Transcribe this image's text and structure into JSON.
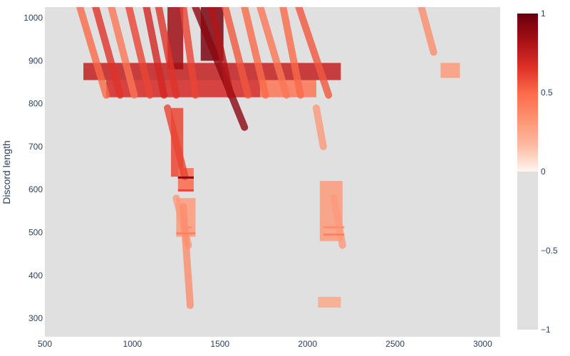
{
  "chart_data": {
    "type": "heatmap",
    "title": "",
    "xlabel": "",
    "ylabel": "Discord length",
    "xlim": [
      500,
      3100
    ],
    "ylim": [
      257,
      1025
    ],
    "x_ticks": [
      500,
      1000,
      1500,
      2000,
      2500,
      3000
    ],
    "y_ticks": [
      300,
      400,
      500,
      600,
      700,
      800,
      900,
      1000
    ],
    "colorscale": {
      "name": "Reds",
      "range": [
        -1,
        1
      ],
      "ticks": [
        -1,
        -0.5,
        0,
        0.5,
        1
      ],
      "tick_labels": [
        "−1",
        "−0.5",
        "0",
        "0.5",
        "1"
      ],
      "negative_color": "#e0e0e0",
      "stops": [
        "#fff5f0",
        "#fcbba1",
        "#fc9272",
        "#fb6a4a",
        "#de2d26",
        "#a50f15",
        "#67000d"
      ]
    },
    "background_color": "#e0e0e0",
    "regions": [
      {
        "x0": 720,
        "x1": 2190,
        "y0": 855,
        "y1": 895,
        "value": 0.75
      },
      {
        "x0": 850,
        "x1": 1730,
        "y0": 815,
        "y1": 855,
        "value": 0.7
      },
      {
        "x0": 1730,
        "x1": 2050,
        "y0": 815,
        "y1": 855,
        "value": 0.45
      },
      {
        "x0": 1200,
        "x1": 1290,
        "y0": 880,
        "y1": 1025,
        "value": 0.85
      },
      {
        "x0": 1390,
        "x1": 1520,
        "y0": 900,
        "y1": 1025,
        "value": 0.95
      },
      {
        "x0": 1220,
        "x1": 1290,
        "y0": 630,
        "y1": 790,
        "value": 0.6
      },
      {
        "x0": 1260,
        "x1": 1350,
        "y0": 600,
        "y1": 650,
        "value": 0.5
      },
      {
        "x0": 1250,
        "x1": 1360,
        "y0": 490,
        "y1": 580,
        "value": 0.3
      },
      {
        "x0": 2070,
        "x1": 2200,
        "y0": 480,
        "y1": 620,
        "value": 0.3
      },
      {
        "x0": 2060,
        "x1": 2190,
        "y0": 325,
        "y1": 350,
        "value": 0.25
      },
      {
        "x0": 2760,
        "x1": 2870,
        "y0": 860,
        "y1": 895,
        "value": 0.3
      }
    ],
    "streaks": [
      {
        "x0": 700,
        "x1": 850,
        "y0": 1025,
        "y1": 820,
        "value": 0.5
      },
      {
        "x0": 790,
        "x1": 930,
        "y0": 1025,
        "y1": 820,
        "value": 0.65
      },
      {
        "x0": 880,
        "x1": 1010,
        "y0": 1025,
        "y1": 820,
        "value": 0.45
      },
      {
        "x0": 980,
        "x1": 1100,
        "y0": 1025,
        "y1": 820,
        "value": 0.6
      },
      {
        "x0": 1080,
        "x1": 1180,
        "y0": 1025,
        "y1": 820,
        "value": 0.7
      },
      {
        "x0": 1150,
        "x1": 1250,
        "y0": 1025,
        "y1": 820,
        "value": 0.65
      },
      {
        "x0": 1290,
        "x1": 1360,
        "y0": 1025,
        "y1": 820,
        "value": 0.6
      },
      {
        "x0": 1360,
        "x1": 1640,
        "y0": 1025,
        "y1": 745,
        "value": 0.9
      },
      {
        "x0": 1450,
        "x1": 1560,
        "y0": 1025,
        "y1": 820,
        "value": 0.8
      },
      {
        "x0": 1530,
        "x1": 1660,
        "y0": 1025,
        "y1": 820,
        "value": 0.55
      },
      {
        "x0": 1640,
        "x1": 1760,
        "y0": 1025,
        "y1": 820,
        "value": 0.5
      },
      {
        "x0": 1730,
        "x1": 1880,
        "y0": 1025,
        "y1": 820,
        "value": 0.45
      },
      {
        "x0": 1860,
        "x1": 1960,
        "y0": 1025,
        "y1": 820,
        "value": 0.5
      },
      {
        "x0": 1950,
        "x1": 2120,
        "y0": 1025,
        "y1": 820,
        "value": 0.55
      },
      {
        "x0": 1200,
        "x1": 1300,
        "y0": 790,
        "y1": 630,
        "value": 0.6
      },
      {
        "x0": 1250,
        "x1": 1320,
        "y0": 580,
        "y1": 470,
        "value": 0.3
      },
      {
        "x0": 1290,
        "x1": 1330,
        "y0": 560,
        "y1": 330,
        "value": 0.35
      },
      {
        "x0": 2050,
        "x1": 2090,
        "y0": 790,
        "y1": 700,
        "value": 0.3
      },
      {
        "x0": 2150,
        "x1": 2200,
        "y0": 580,
        "y1": 470,
        "value": 0.3
      },
      {
        "x0": 2650,
        "x1": 2720,
        "y0": 1025,
        "y1": 920,
        "value": 0.35
      }
    ],
    "bands": [
      {
        "x0": 1260,
        "x1": 1350,
        "y": 628,
        "value": 0.9
      },
      {
        "x0": 1260,
        "x1": 1350,
        "y": 598,
        "value": 0.6
      },
      {
        "x0": 1250,
        "x1": 1360,
        "y": 498,
        "value": 0.4
      },
      {
        "x0": 1280,
        "x1": 1340,
        "y": 512,
        "value": 0.35
      },
      {
        "x0": 2090,
        "x1": 2210,
        "y": 495,
        "value": 0.4
      },
      {
        "x0": 2090,
        "x1": 2210,
        "y": 512,
        "value": 0.35
      }
    ]
  }
}
